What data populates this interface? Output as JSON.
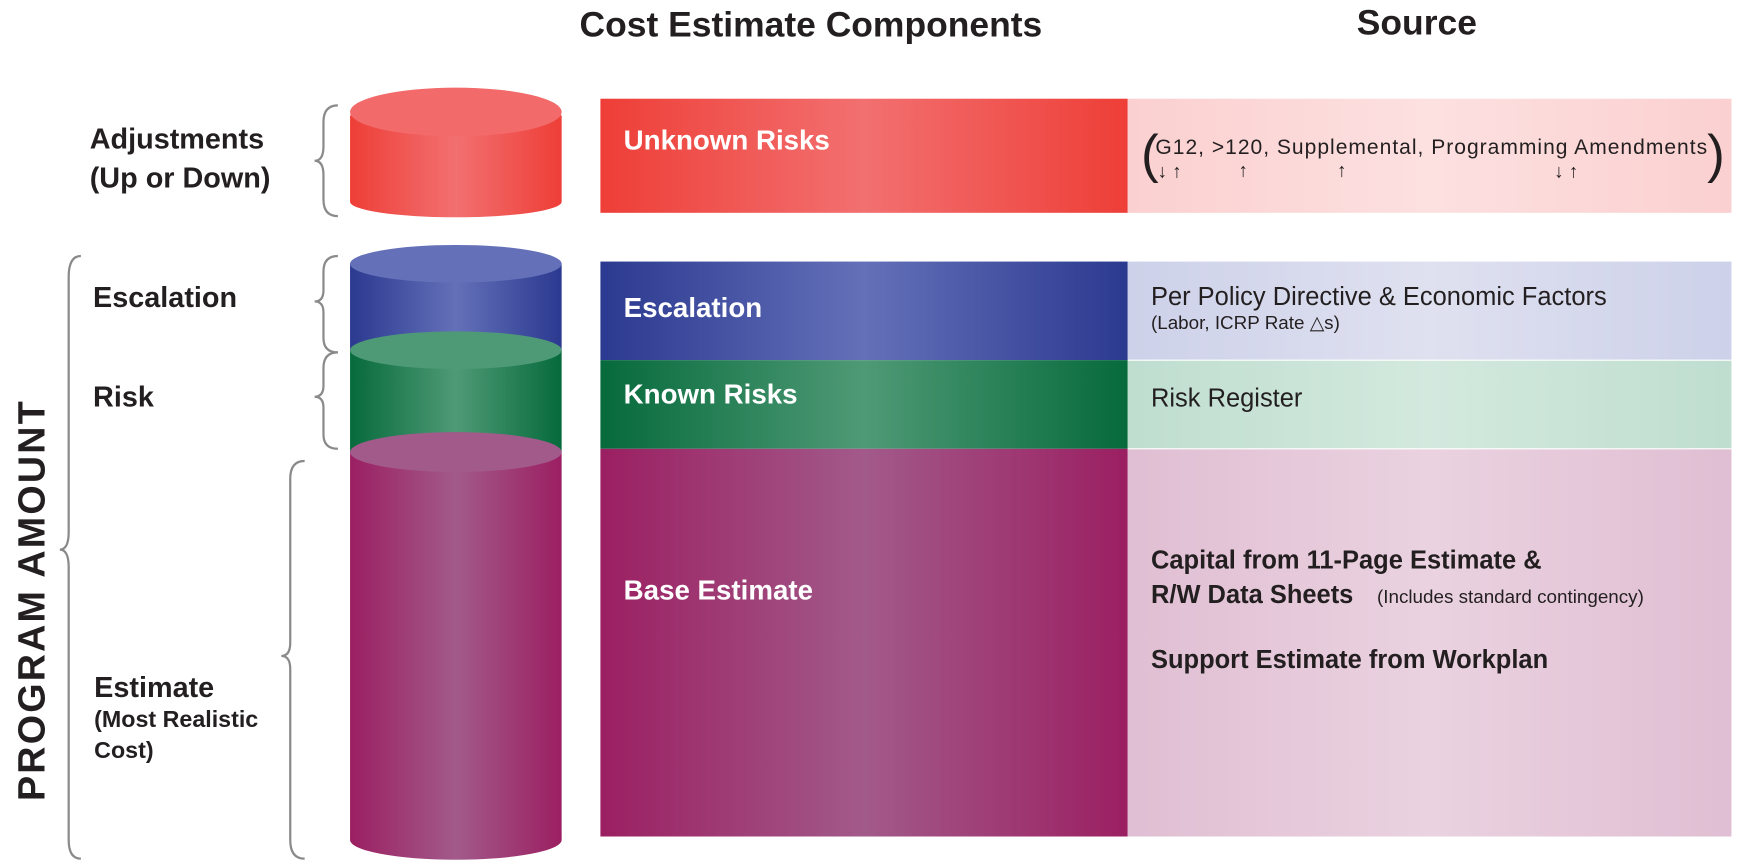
{
  "headers": {
    "components": "Cost Estimate Components",
    "source": "Source"
  },
  "side_label": "PROGRAM AMOUNT",
  "left_labels": {
    "adjustments": [
      "Adjustments",
      "(Up or Down)"
    ],
    "escalation": "Escalation",
    "risk": "Risk",
    "estimate": "Estimate",
    "estimate_note": [
      "(Most Realistic",
      "Cost)"
    ]
  },
  "rows": [
    {
      "component": "Unknown Risks",
      "source": {
        "open": "(",
        "text": "G12, >120, Supplemental, Programming Amendments",
        "close": ")",
        "arrows": [
          "↓ ↑",
          "↑",
          "↑",
          "↓ ↑"
        ]
      }
    },
    {
      "component": "Escalation",
      "source": {
        "text": "Per Policy Directive & Economic Factors",
        "note": "(Labor, ICRP Rate △s)"
      }
    },
    {
      "component": "Known Risks",
      "source": {
        "text": "Risk Register"
      }
    },
    {
      "component": "Base Estimate",
      "source": {
        "line1": "Capital from 11-Page Estimate &",
        "line2": "R/W Data Sheets",
        "line2_note": "(Includes standard contingency)",
        "line3": "Support Estimate from Workplan"
      }
    }
  ]
}
